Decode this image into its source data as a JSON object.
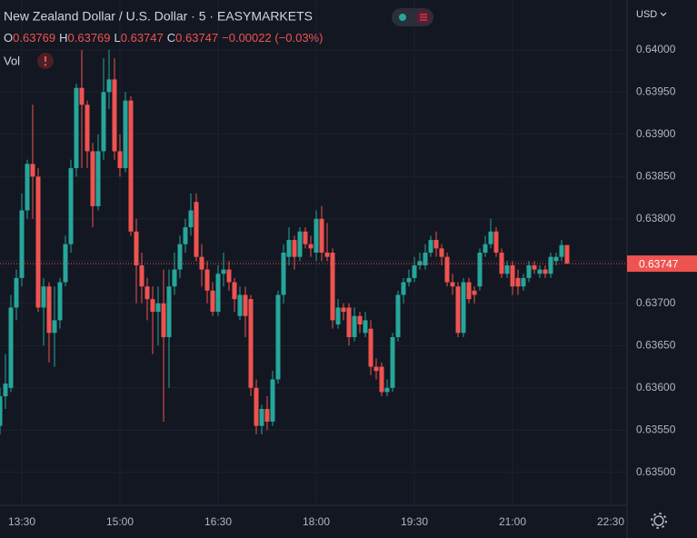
{
  "chart_data": {
    "type": "candlestick",
    "title": "New Zealand Dollar / U.S. Dollar · 5 · EASYMARKETS",
    "ohlc": [
      {
        "label": "O",
        "value": 0.63769
      },
      {
        "label": "H",
        "value": 0.63769
      },
      {
        "label": "L",
        "value": 0.63747
      },
      {
        "label": "C",
        "value": 0.63747
      }
    ],
    "change": "−0.00022 (−0.03%)",
    "volume_label": "Vol",
    "currency": "USD",
    "last_price": 0.63747,
    "up_color": "#26a69a",
    "down_color": "#ef5350",
    "grid": true,
    "xlim": [
      "13:10",
      "22:45"
    ],
    "xticks": [
      "13:30",
      "15:00",
      "16:30",
      "18:00",
      "19:30",
      "21:00",
      "22:30"
    ],
    "ylim": [
      0.63461,
      0.64059
    ],
    "yticks": [
      {
        "value": 0.635,
        "label": "0.63500"
      },
      {
        "value": 0.6355,
        "label": "0.63550"
      },
      {
        "value": 0.636,
        "label": "0.63600"
      },
      {
        "value": 0.6365,
        "label": "0.63650"
      },
      {
        "value": 0.637,
        "label": "0.63700"
      },
      {
        "value": 0.6375,
        "label": "0.63750"
      },
      {
        "value": 0.638,
        "label": "0.63800"
      },
      {
        "value": 0.6385,
        "label": "0.63850"
      },
      {
        "value": 0.639,
        "label": "0.63900"
      },
      {
        "value": 0.6395,
        "label": "0.63950"
      },
      {
        "value": 0.64,
        "label": "0.64000"
      }
    ],
    "x": [
      "13:10",
      "13:15",
      "13:20",
      "13:25",
      "13:30",
      "13:35",
      "13:40",
      "13:45",
      "13:50",
      "13:55",
      "14:00",
      "14:05",
      "14:10",
      "14:15",
      "14:20",
      "14:25",
      "14:30",
      "14:35",
      "14:40",
      "14:45",
      "14:50",
      "14:55",
      "15:00",
      "15:05",
      "15:10",
      "15:15",
      "15:20",
      "15:25",
      "15:30",
      "15:35",
      "15:40",
      "15:45",
      "15:50",
      "15:55",
      "16:00",
      "16:05",
      "16:10",
      "16:15",
      "16:20",
      "16:25",
      "16:30",
      "16:35",
      "16:40",
      "16:45",
      "16:50",
      "16:55",
      "17:00",
      "17:05",
      "17:10",
      "17:15",
      "17:20",
      "17:25",
      "17:30",
      "17:35",
      "17:40",
      "17:45",
      "17:50",
      "17:55",
      "18:00",
      "18:05",
      "18:10",
      "18:15",
      "18:20",
      "18:25",
      "18:30",
      "18:35",
      "18:40",
      "18:45",
      "18:50",
      "18:55",
      "19:00",
      "19:05",
      "19:10",
      "19:15",
      "19:20",
      "19:25",
      "19:30",
      "19:35",
      "19:40",
      "19:45",
      "19:50",
      "19:55",
      "20:00",
      "20:05",
      "20:10",
      "20:15",
      "20:20",
      "20:25",
      "20:30",
      "20:35",
      "20:40",
      "20:45",
      "20:50",
      "20:55",
      "21:00",
      "21:05",
      "21:10",
      "21:15",
      "21:20",
      "21:25",
      "21:30",
      "21:35",
      "21:40",
      "21:45",
      "21:50"
    ],
    "open": [
      0.63555,
      0.6359,
      0.636,
      0.63695,
      0.6373,
      0.6381,
      0.63865,
      0.6385,
      0.63695,
      0.6372,
      0.63665,
      0.6368,
      0.63725,
      0.6377,
      0.6386,
      0.63955,
      0.63935,
      0.6388,
      0.63815,
      0.6388,
      0.6395,
      0.63965,
      0.6388,
      0.6386,
      0.6394,
      0.63785,
      0.63745,
      0.6372,
      0.63705,
      0.6369,
      0.637,
      0.6366,
      0.6372,
      0.6374,
      0.6377,
      0.6379,
      0.6382,
      0.63755,
      0.6374,
      0.63715,
      0.6369,
      0.63735,
      0.6374,
      0.63725,
      0.63685,
      0.6371,
      0.63705,
      0.636,
      0.63555,
      0.63575,
      0.6356,
      0.6361,
      0.6371,
      0.63755,
      0.63775,
      0.63755,
      0.63785,
      0.6377,
      0.6376,
      0.638,
      0.6376,
      0.6376,
      0.63675,
      0.63695,
      0.63695,
      0.6366,
      0.63685,
      0.63665,
      0.6367,
      0.63625,
      0.63625,
      0.63595,
      0.636,
      0.6366,
      0.6371,
      0.63725,
      0.6373,
      0.63745,
      0.63745,
      0.6376,
      0.63775,
      0.63765,
      0.63755,
      0.63725,
      0.6372,
      0.63665,
      0.63725,
      0.63715,
      0.6372,
      0.6376,
      0.6377,
      0.63785,
      0.6376,
      0.63735,
      0.63745,
      0.6373,
      0.6372,
      0.6373,
      0.63745,
      0.63735,
      0.6374,
      0.63735,
      0.6375,
      0.63755,
      0.63769
    ],
    "high": [
      0.636,
      0.6364,
      0.6371,
      0.6374,
      0.6383,
      0.6387,
      0.63935,
      0.6386,
      0.6373,
      0.63725,
      0.6372,
      0.6373,
      0.6378,
      0.6387,
      0.6396,
      0.64,
      0.6394,
      0.6389,
      0.639,
      0.6399,
      0.64,
      0.6399,
      0.639,
      0.6395,
      0.63945,
      0.638,
      0.6376,
      0.6373,
      0.6372,
      0.6372,
      0.6374,
      0.6374,
      0.6376,
      0.6378,
      0.638,
      0.6383,
      0.6383,
      0.6377,
      0.6375,
      0.63725,
      0.63745,
      0.6376,
      0.6375,
      0.6373,
      0.6372,
      0.6372,
      0.6371,
      0.6361,
      0.6358,
      0.6359,
      0.6362,
      0.63715,
      0.6377,
      0.6379,
      0.6378,
      0.6379,
      0.6379,
      0.6378,
      0.6381,
      0.63815,
      0.63795,
      0.63765,
      0.63705,
      0.637,
      0.637,
      0.63695,
      0.6369,
      0.6369,
      0.6368,
      0.63635,
      0.6363,
      0.6361,
      0.63665,
      0.63715,
      0.6373,
      0.6374,
      0.63755,
      0.6376,
      0.6377,
      0.6378,
      0.63785,
      0.6377,
      0.6376,
      0.63735,
      0.63725,
      0.6373,
      0.6373,
      0.6372,
      0.63765,
      0.6378,
      0.638,
      0.6379,
      0.63765,
      0.6375,
      0.6375,
      0.6374,
      0.63735,
      0.6375,
      0.6375,
      0.63745,
      0.63745,
      0.6376,
      0.6376,
      0.63775,
      0.63769
    ],
    "low": [
      0.63545,
      0.63575,
      0.63595,
      0.6368,
      0.6372,
      0.638,
      0.638,
      0.6369,
      0.6365,
      0.6363,
      0.63625,
      0.6367,
      0.6372,
      0.6376,
      0.6385,
      0.6386,
      0.6386,
      0.6379,
      0.6381,
      0.6387,
      0.6393,
      0.6387,
      0.6385,
      0.63855,
      0.6378,
      0.637,
      0.637,
      0.6368,
      0.6364,
      0.6365,
      0.6356,
      0.636,
      0.6371,
      0.6373,
      0.6376,
      0.6378,
      0.6375,
      0.6372,
      0.637,
      0.63685,
      0.63685,
      0.6372,
      0.63715,
      0.6369,
      0.6368,
      0.6366,
      0.6359,
      0.63545,
      0.63545,
      0.6355,
      0.63555,
      0.63605,
      0.637,
      0.63745,
      0.6374,
      0.6375,
      0.63765,
      0.63755,
      0.6375,
      0.6375,
      0.6375,
      0.6367,
      0.6367,
      0.6368,
      0.6365,
      0.63655,
      0.63665,
      0.6366,
      0.63615,
      0.6361,
      0.6359,
      0.6359,
      0.63595,
      0.63655,
      0.637,
      0.6372,
      0.63725,
      0.6374,
      0.6374,
      0.63755,
      0.63755,
      0.63745,
      0.6372,
      0.6371,
      0.6366,
      0.6366,
      0.637,
      0.637,
      0.63715,
      0.63755,
      0.63765,
      0.63755,
      0.6373,
      0.6373,
      0.6371,
      0.6371,
      0.63715,
      0.63725,
      0.63735,
      0.6373,
      0.6373,
      0.6373,
      0.63745,
      0.6375,
      0.63747
    ],
    "close": [
      0.6359,
      0.63605,
      0.63695,
      0.6373,
      0.6381,
      0.63865,
      0.6385,
      0.63695,
      0.6372,
      0.63665,
      0.6368,
      0.63725,
      0.6377,
      0.6386,
      0.63955,
      0.63935,
      0.6388,
      0.63815,
      0.6388,
      0.6395,
      0.63965,
      0.6388,
      0.6386,
      0.6394,
      0.63785,
      0.63745,
      0.6372,
      0.63705,
      0.6369,
      0.637,
      0.6366,
      0.6372,
      0.6374,
      0.6377,
      0.6379,
      0.6381,
      0.63755,
      0.6374,
      0.63715,
      0.6369,
      0.63735,
      0.6374,
      0.63725,
      0.63705,
      0.6371,
      0.63685,
      0.636,
      0.63555,
      0.63575,
      0.6356,
      0.6361,
      0.6371,
      0.6376,
      0.63775,
      0.63755,
      0.63785,
      0.6377,
      0.63765,
      0.638,
      0.6376,
      0.63755,
      0.6368,
      0.63695,
      0.6369,
      0.6366,
      0.63685,
      0.63675,
      0.6368,
      0.63625,
      0.6362,
      0.63595,
      0.636,
      0.6366,
      0.6371,
      0.63725,
      0.6373,
      0.63745,
      0.6375,
      0.6376,
      0.63775,
      0.63765,
      0.63755,
      0.63725,
      0.6372,
      0.63665,
      0.63725,
      0.63705,
      0.6371,
      0.6376,
      0.6377,
      0.63785,
      0.6376,
      0.63735,
      0.63745,
      0.6372,
      0.6372,
      0.6373,
      0.63745,
      0.6374,
      0.6374,
      0.63735,
      0.63755,
      0.63755,
      0.63769,
      0.63747
    ]
  }
}
